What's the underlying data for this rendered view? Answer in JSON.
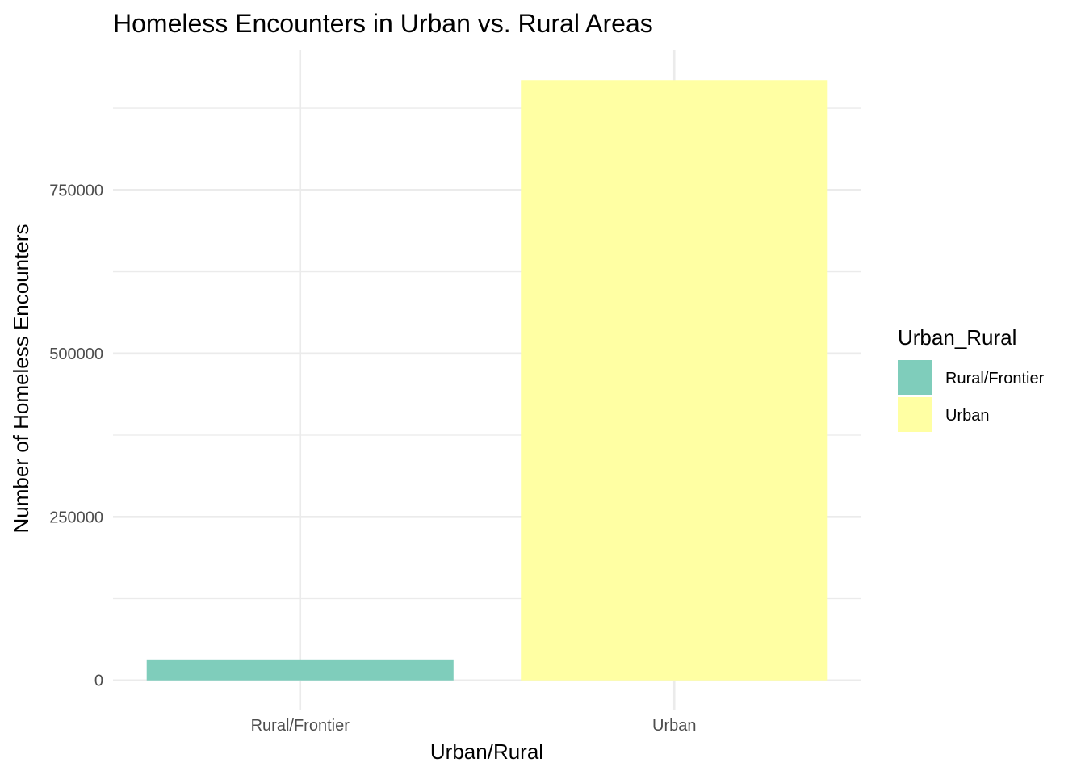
{
  "chart_data": {
    "type": "bar",
    "title": "Homeless Encounters in Urban vs. Rural Areas",
    "xlabel": "Urban/Rural",
    "ylabel": "Number of Homeless Encounters",
    "categories": [
      "Rural/Frontier",
      "Urban"
    ],
    "values": [
      32000,
      918000
    ],
    "colors": [
      "#7fcdbb",
      "#ffffa3"
    ],
    "ylim": [
      -46000,
      964000
    ],
    "yticks": [
      0,
      250000,
      500000,
      750000
    ],
    "ytick_labels": [
      "0",
      "250000",
      "500000",
      "750000"
    ],
    "grid": true,
    "legend": {
      "title": "Urban_Rural",
      "position": "right",
      "entries": [
        "Rural/Frontier",
        "Urban"
      ]
    }
  }
}
